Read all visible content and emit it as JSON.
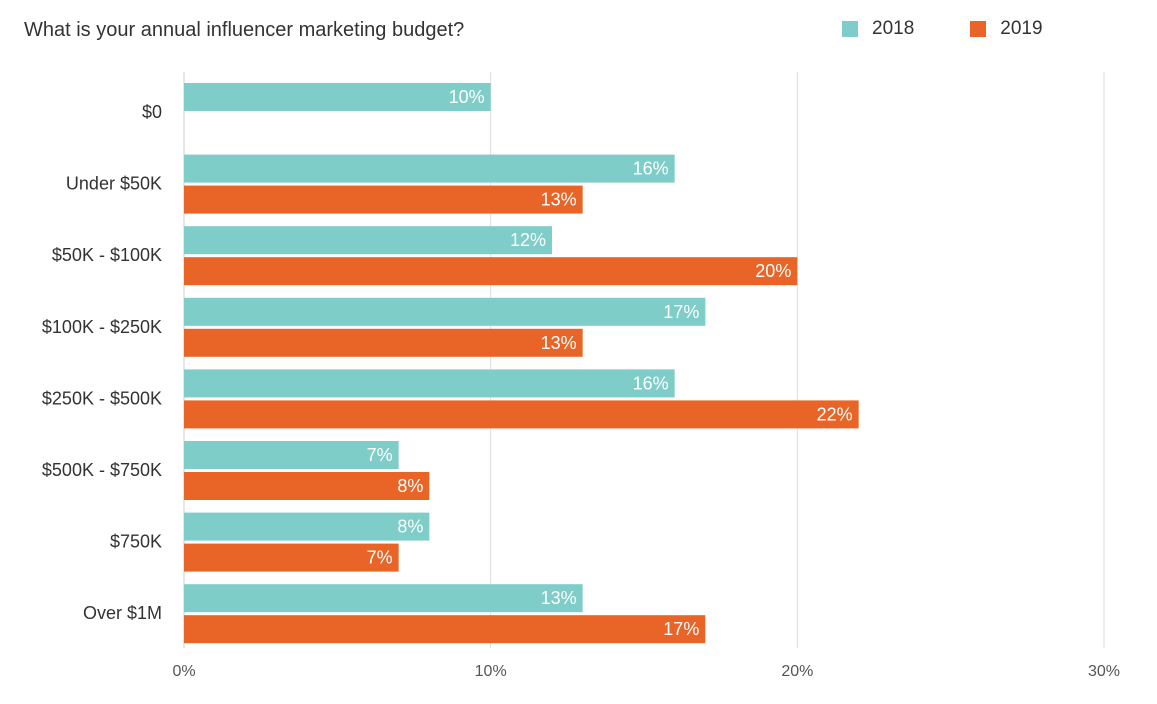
{
  "chart_data": {
    "type": "bar",
    "orientation": "horizontal",
    "title": "What is your annual influencer marketing budget?",
    "categories": [
      "$0",
      "Under $50K",
      "$50K - $100K",
      "$100K - $250K",
      "$250K - $500K",
      "$500K - $750K",
      "$750K",
      "Over $1M"
    ],
    "series": [
      {
        "name": "2018",
        "color": "#7ecdc8",
        "values": [
          10,
          16,
          12,
          17,
          16,
          7,
          8,
          13
        ],
        "labels": [
          "10%",
          "16%",
          "12%",
          "17%",
          "16%",
          "7%",
          "8%",
          "13%"
        ]
      },
      {
        "name": "2019",
        "color": "#e86427",
        "values": [
          null,
          13,
          20,
          13,
          22,
          8,
          7,
          17
        ],
        "labels": [
          "",
          "13%",
          "20%",
          "13%",
          "22%",
          "8%",
          "7%",
          "17%"
        ]
      }
    ],
    "xlim": [
      0,
      30
    ],
    "xticks": [
      0,
      10,
      20,
      30
    ],
    "xtick_labels": [
      "0%",
      "10%",
      "20%",
      "30%"
    ],
    "grid": true,
    "legend_position": "top-right"
  }
}
